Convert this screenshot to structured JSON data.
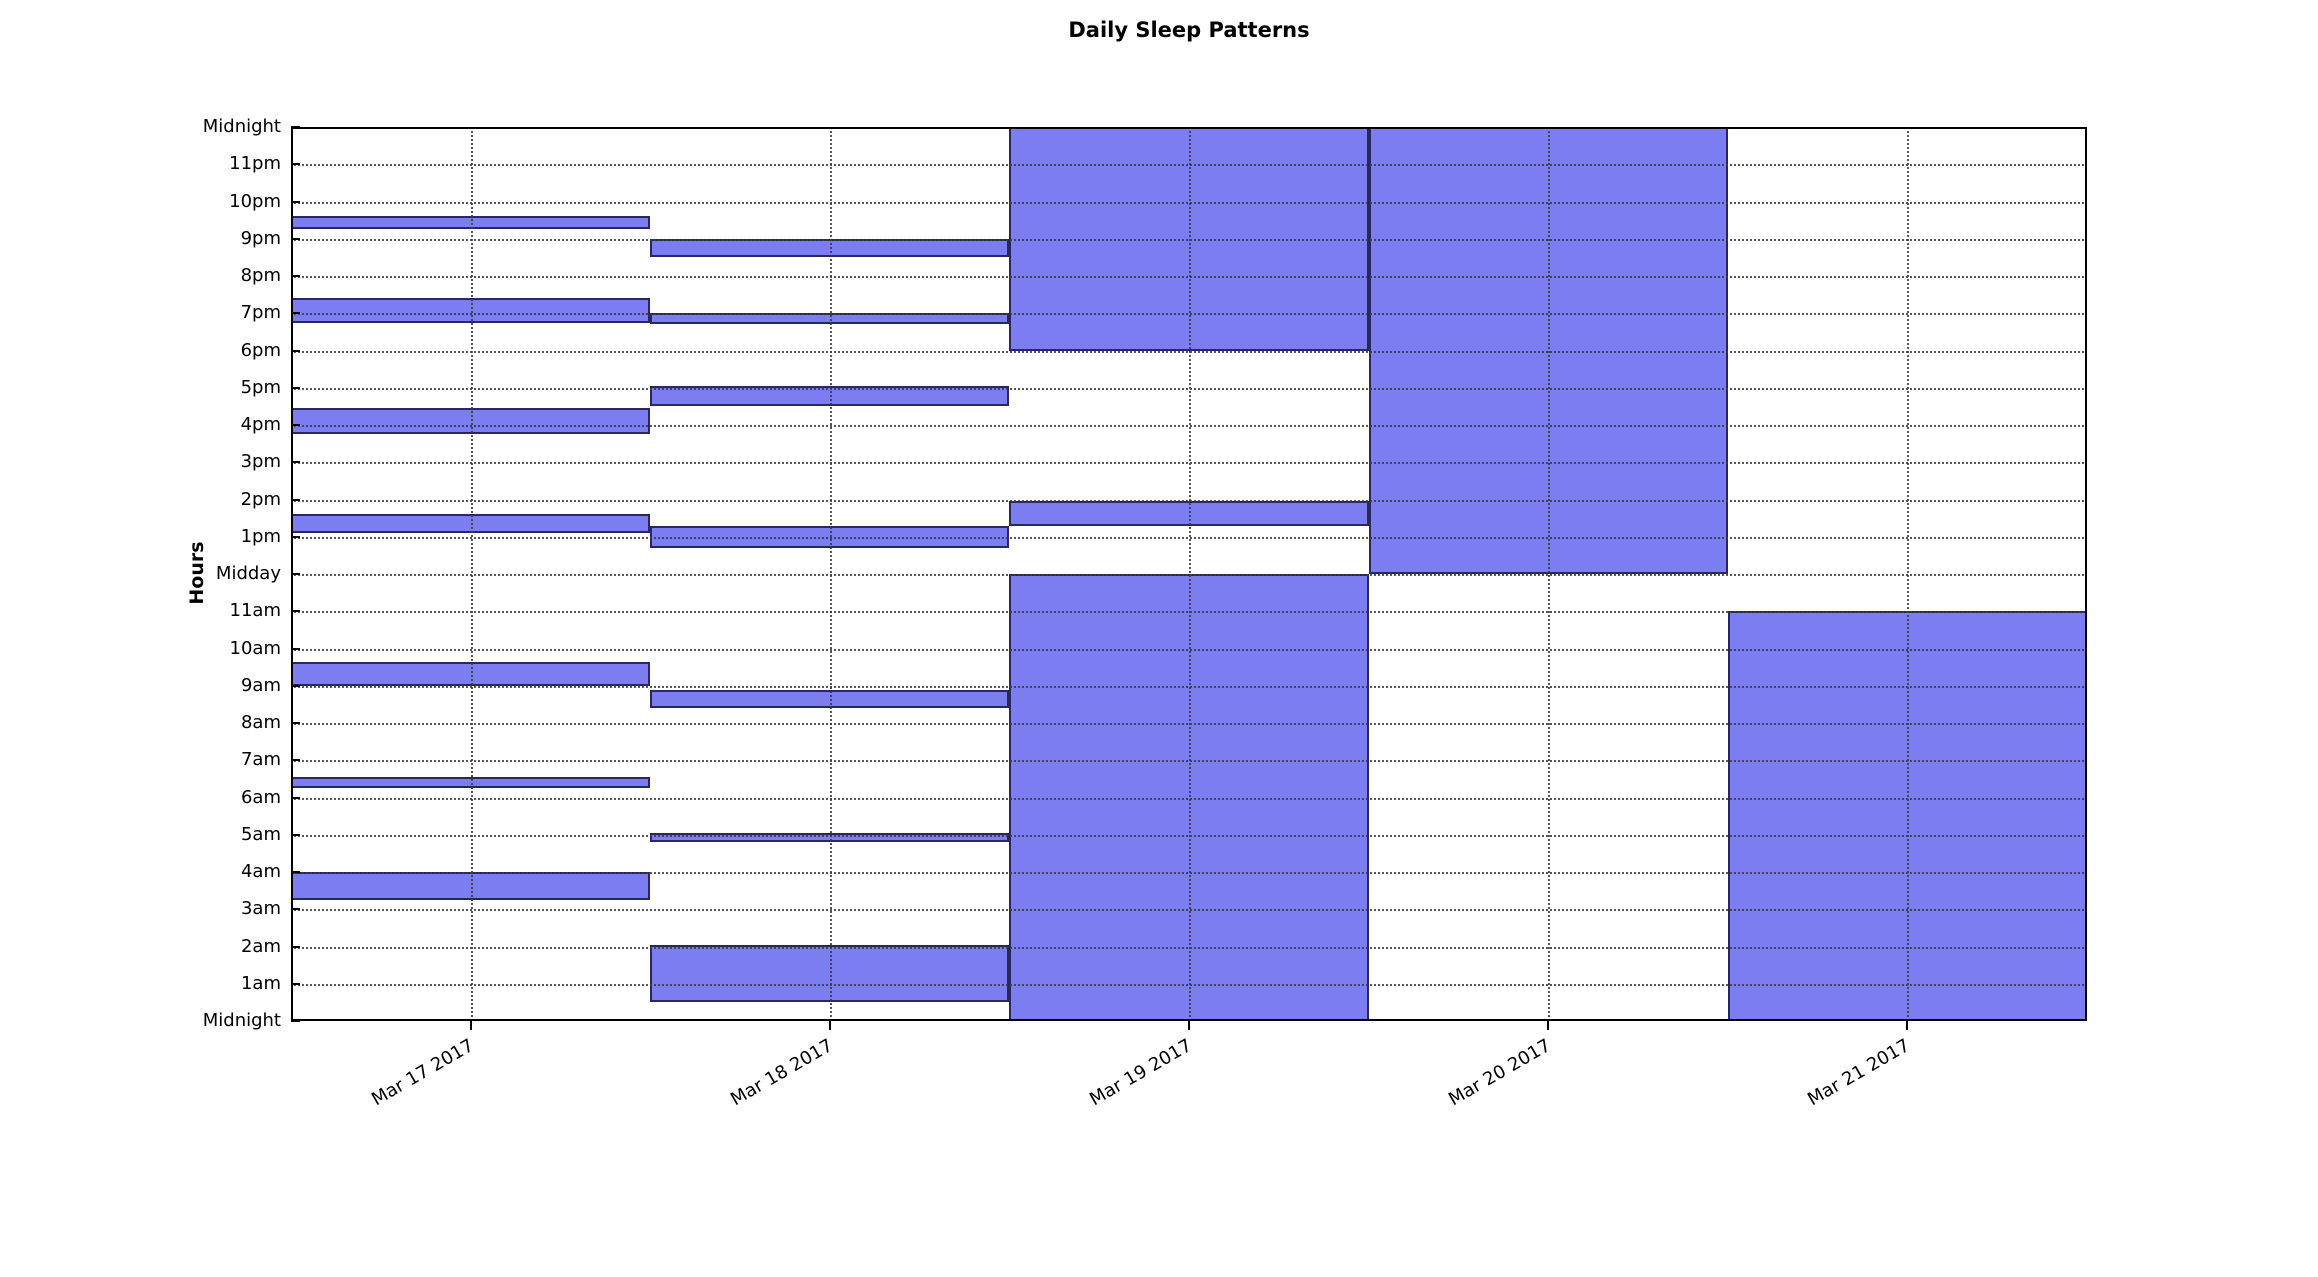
{
  "page": {
    "title": "Daily Sleep Patterns"
  },
  "chart_data": {
    "type": "bar",
    "variant": "broken-horizontal-bar-timeline (sleep intervals per day)",
    "title": "Daily Sleep Patterns",
    "xlabel": "",
    "ylabel": "Hours",
    "x_tick_labels": [
      "Mar 17 2017",
      "Mar 18 2017",
      "Mar 19 2017",
      "Mar 20 2017",
      "Mar 21 2017"
    ],
    "x_tick_label_rotation_deg": 30,
    "y_tick_labels_bottom_to_top": [
      "Midnight",
      "1am",
      "2am",
      "3am",
      "4am",
      "5am",
      "6am",
      "7am",
      "8am",
      "9am",
      "10am",
      "11am",
      "Midday",
      "1pm",
      "2pm",
      "3pm",
      "4pm",
      "5pm",
      "6pm",
      "7pm",
      "8pm",
      "9pm",
      "10pm",
      "11pm",
      "Midnight"
    ],
    "ylim": [
      0,
      24
    ],
    "grid": {
      "horizontal": "dotted line at every hour",
      "vertical": "dotted line at each day-column center",
      "drawn_above_bars": true
    },
    "legend": null,
    "series": [
      {
        "date": "Mar 17 2017",
        "sleep_intervals_hours": [
          [
            3.25,
            4.0
          ],
          [
            6.25,
            6.55
          ],
          [
            9.0,
            9.65
          ],
          [
            13.1,
            13.6
          ],
          [
            15.75,
            16.45
          ],
          [
            18.75,
            19.4
          ],
          [
            21.25,
            21.6
          ]
        ]
      },
      {
        "date": "Mar 18 2017",
        "sleep_intervals_hours": [
          [
            0.5,
            2.05
          ],
          [
            4.8,
            5.05
          ],
          [
            8.4,
            8.9
          ],
          [
            12.7,
            13.3
          ],
          [
            16.5,
            17.05
          ],
          [
            18.7,
            19.0
          ],
          [
            20.5,
            21.0
          ]
        ]
      },
      {
        "date": "Mar 19 2017",
        "sleep_intervals_hours": [
          [
            0,
            12
          ],
          [
            13.3,
            13.95
          ],
          [
            18,
            24
          ]
        ]
      },
      {
        "date": "Mar 20 2017",
        "sleep_intervals_hours": [
          [
            12,
            24
          ]
        ]
      },
      {
        "date": "Mar 21 2017",
        "sleep_intervals_hours": [
          [
            0,
            11
          ]
        ]
      }
    ],
    "colors": {
      "bar_fill": "#7D7DF2",
      "bar_edge": "#28285E",
      "grid_dots": "#3A3A3A",
      "axis": "#000000",
      "background": "#FFFFFF",
      "text": "#000000"
    }
  }
}
